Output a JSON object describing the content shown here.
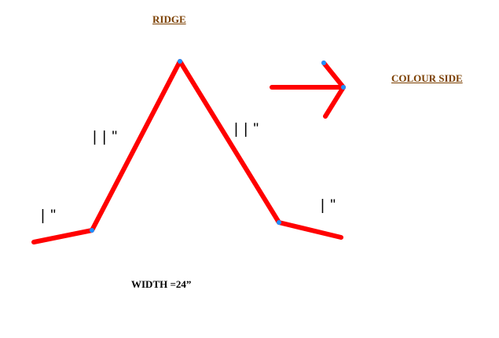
{
  "labels": {
    "ridge": "RIDGE",
    "colour_side": "COLOUR  SIDE",
    "width": "WIDTH  =24”",
    "left_flange": "| \"",
    "left_slope": "| | \"",
    "right_slope": "| | \"",
    "right_flange": "| \""
  },
  "colors": {
    "profile": "#ff0000",
    "vertex": "#1e90ff",
    "heading": "#7b3f00",
    "text": "#000000"
  }
}
